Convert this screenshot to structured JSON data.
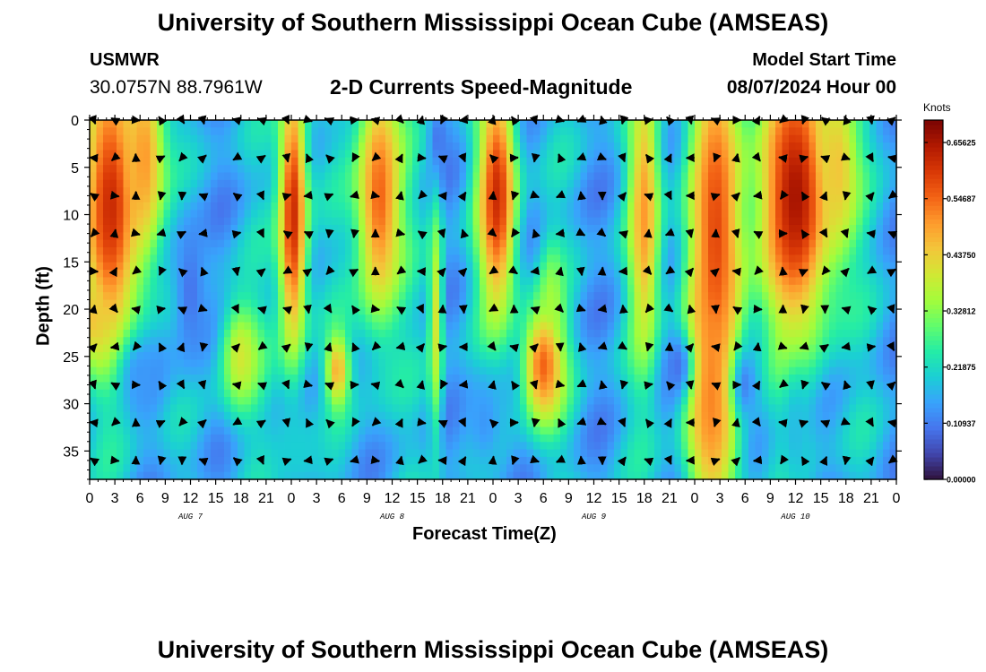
{
  "header": {
    "title": "University of Southern Mississippi Ocean Cube (AMSEAS)",
    "station": "USMWR",
    "coordinates": "30.0757N  88.7961W",
    "subtitle": "2-D Currents Speed-Magnitude",
    "model_start_label": "Model Start Time",
    "model_start_value": "08/07/2024 Hour 00"
  },
  "footer": {
    "title": "University of Southern Mississippi Ocean Cube (AMSEAS)"
  },
  "chart_data": {
    "type": "heatmap",
    "title": "2-D Currents Speed-Magnitude",
    "xlabel": "Forecast Time(Z)",
    "ylabel": "Depth (ft)",
    "x_unit": "hours since model start",
    "xlim": [
      0,
      96
    ],
    "ylim": [
      0,
      38
    ],
    "y_inverted": true,
    "x_tick_labels": [
      "0",
      "3",
      "6",
      "9",
      "12",
      "15",
      "18",
      "21",
      "0",
      "3",
      "6",
      "9",
      "12",
      "15",
      "18",
      "21",
      "0",
      "3",
      "6",
      "9",
      "12",
      "15",
      "18",
      "21",
      "0",
      "3",
      "6",
      "9",
      "12",
      "15",
      "18",
      "21",
      "0"
    ],
    "y_ticks": [
      0,
      5,
      10,
      15,
      20,
      25,
      30,
      35
    ],
    "y_tick_labels": [
      "0",
      "5",
      "10",
      "15",
      "20",
      "25",
      "30",
      "35"
    ],
    "day_labels": [
      {
        "hour": 12,
        "label": "AUG 7"
      },
      {
        "hour": 36,
        "label": "AUG 8"
      },
      {
        "hour": 60,
        "label": "AUG 9"
      },
      {
        "hour": 84,
        "label": "AUG 10"
      }
    ],
    "colorbar": {
      "units": "Knots",
      "min": 0,
      "max": 0.7,
      "tick_values": [
        0.0,
        0.109375,
        0.21875,
        0.328125,
        0.4375,
        0.546875,
        0.65625
      ],
      "tick_labels": [
        "0.00000",
        "0.10937",
        "0.21875",
        "0.32812",
        "0.43750",
        "0.54687",
        "0.65625"
      ]
    },
    "colors": [
      "#30123b",
      "#4145ab",
      "#4675ed",
      "#39a2fc",
      "#1bcfd4",
      "#24eca6",
      "#61fc6c",
      "#a4fc3b",
      "#d1e834",
      "#f3c63a",
      "#fe9b2d",
      "#f36315",
      "#d93806",
      "#b11901",
      "#7a0403"
    ],
    "speed_blobs": [
      {
        "t": 2.5,
        "d": 9,
        "st": 2.5,
        "sd": 11,
        "v": 0.62
      },
      {
        "t": 6.5,
        "d": 4,
        "st": 1.8,
        "sd": 8,
        "v": 0.5
      },
      {
        "t": 0.5,
        "d": 21,
        "st": 1.2,
        "sd": 3,
        "v": 0.45
      },
      {
        "t": 18,
        "d": 25,
        "st": 1.8,
        "sd": 4.5,
        "v": 0.4
      },
      {
        "t": 24.2,
        "d": 10,
        "st": 1.2,
        "sd": 11,
        "v": 0.62
      },
      {
        "t": 34.5,
        "d": 8,
        "st": 2.0,
        "sd": 10,
        "v": 0.55
      },
      {
        "t": 29.5,
        "d": 26.5,
        "st": 1.0,
        "sd": 2.8,
        "v": 0.48
      },
      {
        "t": 41.2,
        "d": 21,
        "st": 0.6,
        "sd": 9,
        "v": 0.4
      },
      {
        "t": 48.5,
        "d": 8,
        "st": 1.6,
        "sd": 9,
        "v": 0.62
      },
      {
        "t": 54,
        "d": 26,
        "st": 1.8,
        "sd": 4.5,
        "v": 0.55
      },
      {
        "t": 55,
        "d": 20,
        "st": 1.0,
        "sd": 5,
        "v": 0.35
      },
      {
        "t": 66,
        "d": 10,
        "st": 1.3,
        "sd": 11,
        "v": 0.5
      },
      {
        "t": 74.5,
        "d": 12,
        "st": 2.3,
        "sd": 16,
        "v": 0.58
      },
      {
        "t": 74,
        "d": 29,
        "st": 2.0,
        "sd": 9,
        "v": 0.52
      },
      {
        "t": 84,
        "d": 8,
        "st": 3.2,
        "sd": 11,
        "v": 0.66
      },
      {
        "t": 89,
        "d": 5,
        "st": 1.8,
        "sd": 7,
        "v": 0.45
      }
    ],
    "low_spots": [
      {
        "t": 6,
        "d": 27,
        "st": 1.8,
        "sd": 3,
        "v": 0.14
      },
      {
        "t": 12,
        "d": 18,
        "st": 1.5,
        "sd": 6,
        "v": 0.1
      },
      {
        "t": 25,
        "d": 35,
        "st": 2.5,
        "sd": 3,
        "v": 0.2
      },
      {
        "t": 47,
        "d": 32,
        "st": 1.8,
        "sd": 4,
        "v": 0.14
      },
      {
        "t": 41.5,
        "d": 2,
        "st": 0.8,
        "sd": 2.5,
        "v": 0.1
      },
      {
        "t": 84,
        "d": 33,
        "st": 1.2,
        "sd": 5,
        "v": 0.18
      },
      {
        "t": 78,
        "d": 28,
        "st": 1.2,
        "sd": 3,
        "v": 0.12
      },
      {
        "t": 70,
        "d": 26,
        "st": 1.2,
        "sd": 2.5,
        "v": 0.1
      }
    ],
    "vector_times": [
      0.5,
      3,
      5.5,
      8.5,
      11,
      13.5,
      17.5,
      20.5,
      23.5,
      26,
      28.5,
      31.5,
      34,
      37,
      39.5,
      42,
      44.5,
      48,
      50.5,
      53,
      56,
      58.5,
      61,
      63.5,
      66.5,
      69,
      71.5,
      74.5,
      77,
      79.5,
      82.5,
      85,
      87.5,
      90,
      93,
      95.5
    ],
    "vector_depths": [
      0,
      4,
      8,
      12,
      16,
      20,
      24,
      28,
      32,
      36
    ]
  }
}
